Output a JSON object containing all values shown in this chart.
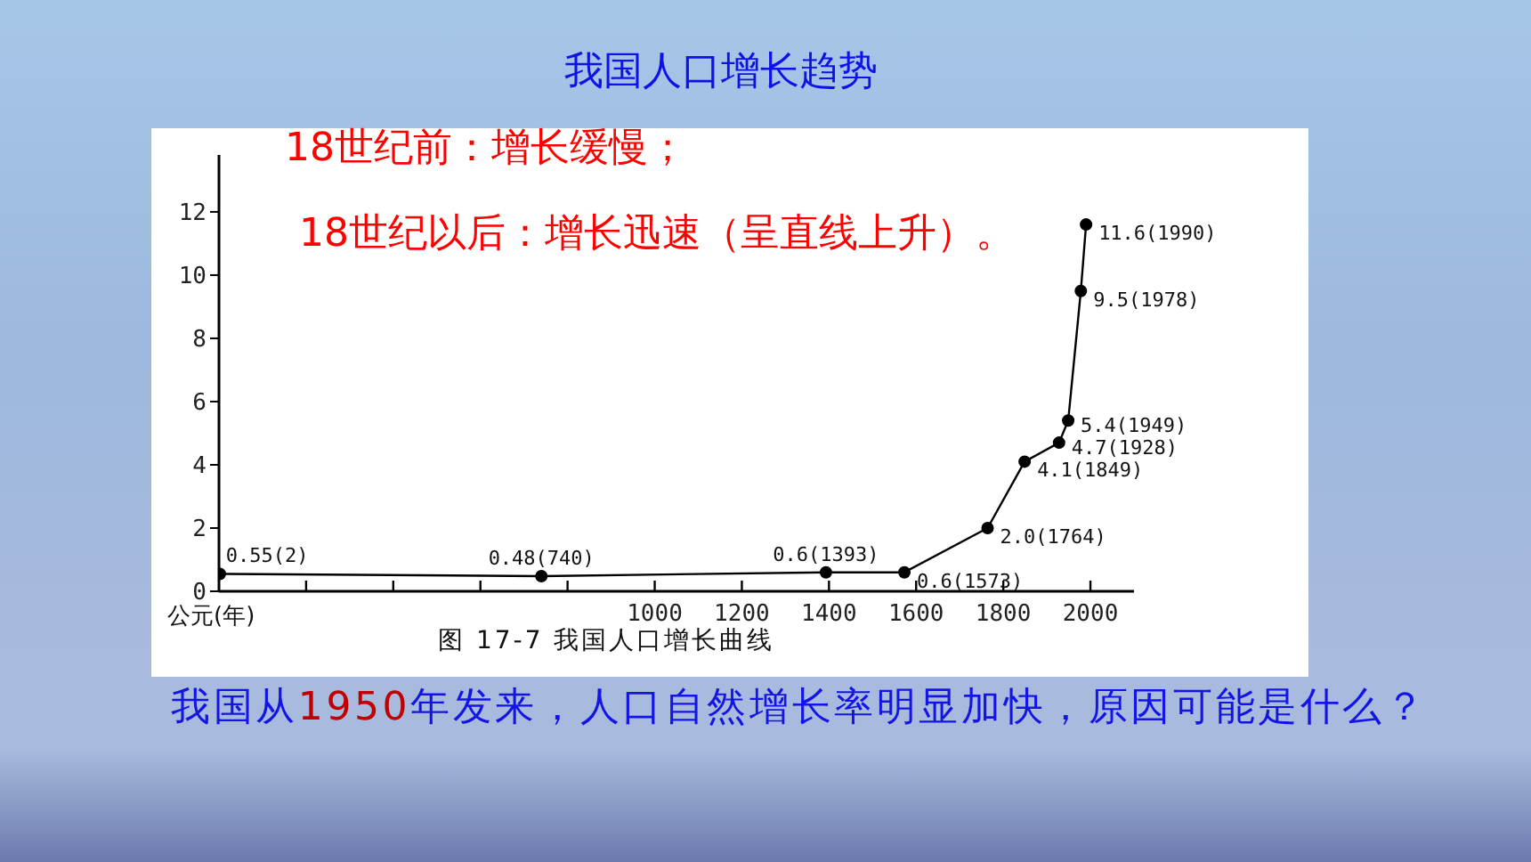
{
  "chart_data": {
    "type": "line",
    "title": "我国人口增长趋势",
    "xlabel": "公元(年)",
    "annotations": [
      "18世纪前：增长缓慢；",
      "18世纪以后：增长迅速（呈直线上升）。",
      "图 17-7 我国人口增长曲线",
      "我国从1950年发来，人口自然增长率明显加快，原因可能是什么？"
    ],
    "x": [
      2,
      740,
      1393,
      1573,
      1764,
      1849,
      1928,
      1949,
      1978,
      1990
    ],
    "series": [
      {
        "color": "#000000",
        "values": [
          0.55,
          0.48,
          0.6,
          0.6,
          2.0,
          4.1,
          4.7,
          5.4,
          9.5,
          11.6
        ],
        "value_labels": [
          "0.55(2)",
          "0.48(740)",
          "0.6(1393)",
          "0.6(1573)",
          "2.0(1764)",
          "4.1(1849)",
          "4.7(1928)",
          "5.4(1949)",
          "9.5(1978)",
          "11.6(1990)"
        ]
      }
    ],
    "xlim": [
      0,
      2100
    ],
    "xticks": [
      {
        "value": 200,
        "label": null
      },
      {
        "value": 400,
        "label": null
      },
      {
        "value": 600,
        "label": null
      },
      {
        "value": 800,
        "label": null
      },
      1000,
      1200,
      1400,
      1600,
      1800,
      2000
    ],
    "ylim": [
      0,
      13.8
    ],
    "yticks": [
      0,
      2,
      4,
      6,
      8,
      10,
      12
    ],
    "marker": "circle"
  }
}
